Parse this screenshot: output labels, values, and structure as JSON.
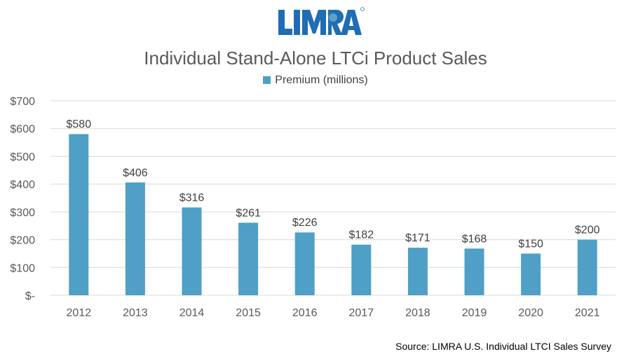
{
  "logo": {
    "text": "LIMRA",
    "color": "#1f6db4"
  },
  "chart_data": {
    "type": "bar",
    "title": "Individual Stand-Alone LTCi Product Sales",
    "categories": [
      "2012",
      "2013",
      "2014",
      "2015",
      "2016",
      "2017",
      "2018",
      "2019",
      "2020",
      "2021"
    ],
    "series": [
      {
        "name": "Premium (millions)",
        "values": [
          580,
          406,
          316,
          261,
          226,
          182,
          171,
          168,
          150,
          200
        ],
        "color": "#4f9fc7"
      }
    ],
    "data_labels": [
      "$580",
      "$406",
      "$316",
      "$261",
      "$226",
      "$182",
      "$171",
      "$168",
      "$150",
      "$200"
    ],
    "y_ticks": [
      0,
      100,
      200,
      300,
      400,
      500,
      600,
      700
    ],
    "y_tick_labels": [
      "$-",
      "$100",
      "$200",
      "$300",
      "$400",
      "$500",
      "$600",
      "$700"
    ],
    "ylim": [
      0,
      700
    ],
    "grid": true,
    "legend": "top"
  },
  "source": "Source: LIMRA U.S. Individual LTCI Sales Survey"
}
